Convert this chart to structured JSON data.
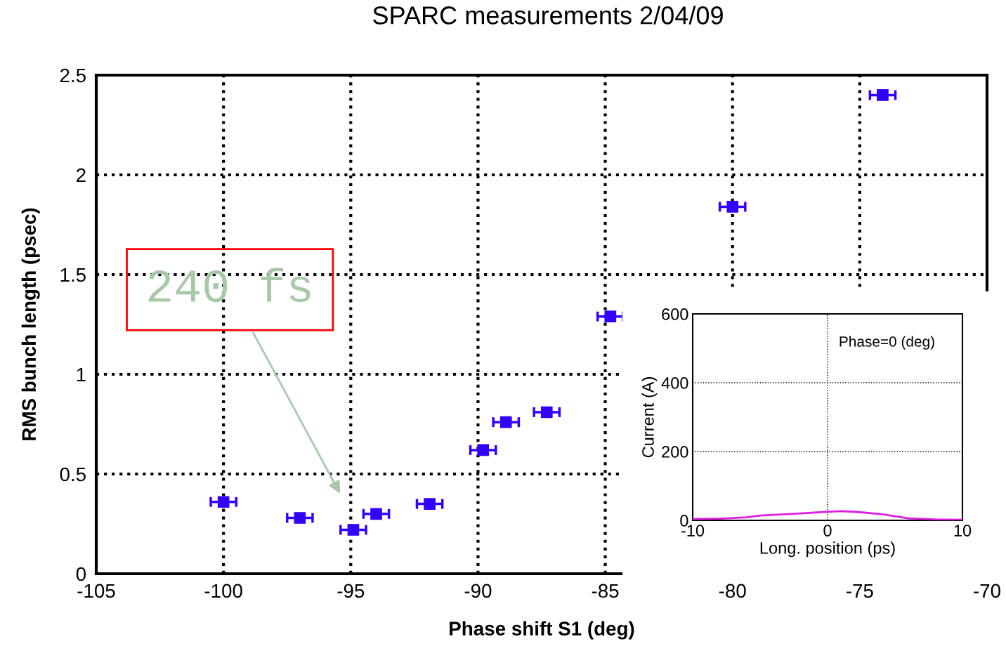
{
  "chart_data": [
    {
      "type": "scatter",
      "title": "SPARC measurements 2/04/09",
      "xlabel": "Phase shift S1 (deg)",
      "ylabel": "RMS bunch length (psec)",
      "x": [
        -100,
        -97,
        -94.9,
        -94,
        -91.9,
        -89.8,
        -88.9,
        -87.3,
        -84.8,
        -80,
        -74.1
      ],
      "series": [
        {
          "color": "#3300ff",
          "values": [
            0.36,
            0.28,
            0.22,
            0.3,
            0.35,
            0.62,
            0.76,
            0.81,
            1.29,
            1.84,
            2.4
          ],
          "xerrors": [
            0.5,
            0.5,
            0.5,
            0.5,
            0.5,
            0.5,
            0.5,
            0.5,
            0.5,
            0.5,
            0.5
          ]
        }
      ],
      "marker": "square",
      "xlim": [
        -105,
        -70
      ],
      "xticks": [
        -105,
        -100,
        -95,
        -90,
        -85,
        -80,
        -75,
        -70
      ],
      "ylim": [
        0,
        2.5
      ],
      "yticks": [
        0,
        0.5,
        1,
        1.5,
        2,
        2.5
      ],
      "grid": true,
      "annotations": [
        "240 fs"
      ]
    },
    {
      "type": "line",
      "xlabel": "Long. position (ps)",
      "ylabel": "Current (A)",
      "x": [
        -10,
        -8,
        -6,
        -5,
        -4,
        -2,
        0,
        1,
        2,
        4,
        5,
        6,
        8,
        10
      ],
      "series": [
        {
          "color": "#e020e0",
          "values": [
            4,
            5,
            9,
            14,
            16,
            20,
            25,
            27,
            25,
            18,
            12,
            6,
            3,
            2
          ]
        }
      ],
      "xlim": [
        -10,
        10
      ],
      "xticks": [
        -10,
        0,
        10
      ],
      "ylim": [
        0,
        600
      ],
      "yticks": [
        0,
        200,
        400,
        600
      ],
      "grid": true,
      "annotations": [
        "Phase=0 (deg)"
      ]
    }
  ]
}
